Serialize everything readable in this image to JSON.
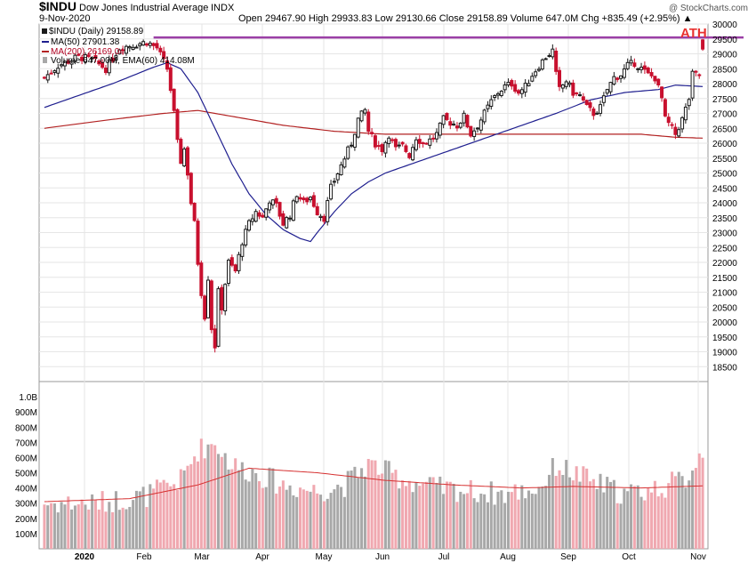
{
  "header": {
    "symbol": "$INDU",
    "name": "Dow Jones Industrial Average",
    "exchange": "INDX",
    "date": "9-Nov-2020",
    "quote": "Open 29467.90  High 29933.83  Low 29130.66  Close 29158.89  Volume 647.0M  Chg +835.49 (+2.95%) ▲",
    "brand": "@ StockCharts.com"
  },
  "legend": {
    "price": "$INDU (Daily) 29158.89",
    "ma50": "MA(50) 27901.38",
    "ma200": "MA(200) 26169.04",
    "volume": "Volume 647.00M, EMA(60) 414.08M"
  },
  "annotation": {
    "label": "ATH",
    "level": 29550
  },
  "colors": {
    "up": "#1a1a1a",
    "down": "#c8102e",
    "ma50": "#1f1f8f",
    "ma200": "#b22222",
    "vol_up": "#a8a8a8",
    "vol_down": "#f0a8b0",
    "vol_ema": "#d63030",
    "ath_line": "#9b3fa6",
    "grid": "#e6e6e6"
  },
  "chart_data": {
    "type": "candlestick",
    "title": "$INDU Dow Jones Industrial Average (Daily)",
    "y_axis": {
      "min": 18000,
      "max": 30000,
      "ticks": [
        18500,
        19000,
        19500,
        20000,
        20500,
        21000,
        21500,
        22000,
        22500,
        23000,
        23500,
        24000,
        24500,
        25000,
        25500,
        26000,
        26500,
        27000,
        27500,
        28000,
        28500,
        29000,
        29500,
        30000
      ]
    },
    "volume_axis": {
      "max_millions": 1100,
      "ticks": [
        "100M",
        "200M",
        "300M",
        "400M",
        "500M",
        "600M",
        "700M",
        "800M",
        "900M",
        "1.0B"
      ]
    },
    "x_labels": [
      "2020",
      "Feb",
      "Mar",
      "Apr",
      "May",
      "Jun",
      "Jul",
      "Aug",
      "Sep",
      "Oct",
      "Nov"
    ],
    "price_anchors": [
      [
        0,
        28200
      ],
      [
        4,
        28600
      ],
      [
        10,
        28900
      ],
      [
        14,
        28800
      ],
      [
        18,
        28500
      ],
      [
        22,
        29200
      ],
      [
        26,
        29300
      ],
      [
        30,
        29400
      ],
      [
        33,
        29200
      ],
      [
        36,
        28500
      ],
      [
        37,
        27800
      ],
      [
        38,
        27000
      ],
      [
        39,
        26000
      ],
      [
        40,
        25400
      ],
      [
        41,
        25800
      ],
      [
        42,
        25000
      ],
      [
        43,
        24000
      ],
      [
        44,
        23300
      ],
      [
        45,
        22000
      ],
      [
        46,
        21000
      ],
      [
        47,
        20200
      ],
      [
        48,
        21500
      ],
      [
        49,
        19800
      ],
      [
        50,
        19200
      ],
      [
        51,
        21000
      ],
      [
        52,
        20500
      ],
      [
        53,
        21300
      ],
      [
        54,
        22000
      ],
      [
        56,
        21700
      ],
      [
        58,
        22700
      ],
      [
        60,
        23300
      ],
      [
        62,
        23700
      ],
      [
        64,
        23500
      ],
      [
        66,
        24100
      ],
      [
        68,
        23900
      ],
      [
        70,
        23300
      ],
      [
        72,
        23600
      ],
      [
        74,
        24300
      ],
      [
        76,
        24000
      ],
      [
        78,
        24200
      ],
      [
        80,
        23700
      ],
      [
        82,
        23500
      ],
      [
        84,
        24500
      ],
      [
        86,
        25000
      ],
      [
        88,
        25500
      ],
      [
        90,
        26000
      ],
      [
        92,
        26800
      ],
      [
        94,
        27100
      ],
      [
        95,
        26400
      ],
      [
        97,
        26000
      ],
      [
        99,
        25800
      ],
      [
        101,
        26300
      ],
      [
        103,
        25800
      ],
      [
        105,
        25900
      ],
      [
        107,
        25600
      ],
      [
        109,
        26200
      ],
      [
        111,
        26000
      ],
      [
        113,
        26100
      ],
      [
        115,
        26300
      ],
      [
        117,
        26800
      ],
      [
        119,
        26700
      ],
      [
        121,
        26600
      ],
      [
        123,
        26900
      ],
      [
        125,
        26300
      ],
      [
        127,
        26600
      ],
      [
        129,
        27000
      ],
      [
        131,
        27400
      ],
      [
        133,
        27700
      ],
      [
        135,
        27900
      ],
      [
        137,
        28000
      ],
      [
        139,
        27700
      ],
      [
        141,
        27900
      ],
      [
        143,
        28300
      ],
      [
        145,
        28600
      ],
      [
        147,
        28900
      ],
      [
        149,
        29100
      ],
      [
        150,
        28300
      ],
      [
        151,
        27800
      ],
      [
        153,
        28100
      ],
      [
        155,
        27700
      ],
      [
        157,
        27600
      ],
      [
        159,
        27200
      ],
      [
        161,
        27000
      ],
      [
        163,
        27200
      ],
      [
        165,
        27800
      ],
      [
        167,
        28200
      ],
      [
        169,
        28300
      ],
      [
        171,
        28600
      ],
      [
        173,
        28700
      ],
      [
        175,
        28500
      ],
      [
        177,
        28300
      ],
      [
        179,
        28200
      ],
      [
        181,
        27500
      ],
      [
        182,
        26800
      ],
      [
        184,
        26500
      ],
      [
        185,
        26300
      ],
      [
        187,
        26800
      ],
      [
        189,
        27500
      ],
      [
        190,
        28300
      ],
      [
        192,
        28300
      ],
      [
        193,
        29159
      ]
    ],
    "ma50_anchors": [
      [
        0,
        27200
      ],
      [
        20,
        28000
      ],
      [
        32,
        28550
      ],
      [
        36,
        28700
      ],
      [
        40,
        28500
      ],
      [
        45,
        27700
      ],
      [
        50,
        26500
      ],
      [
        55,
        25300
      ],
      [
        60,
        24300
      ],
      [
        65,
        23600
      ],
      [
        70,
        23100
      ],
      [
        75,
        22800
      ],
      [
        78,
        22700
      ],
      [
        80,
        23000
      ],
      [
        85,
        23700
      ],
      [
        90,
        24300
      ],
      [
        95,
        24700
      ],
      [
        100,
        25000
      ],
      [
        110,
        25400
      ],
      [
        120,
        25800
      ],
      [
        130,
        26200
      ],
      [
        140,
        26600
      ],
      [
        150,
        27000
      ],
      [
        160,
        27450
      ],
      [
        170,
        27700
      ],
      [
        180,
        27800
      ],
      [
        185,
        27950
      ],
      [
        193,
        27901
      ]
    ],
    "ma200_anchors": [
      [
        0,
        26500
      ],
      [
        20,
        26800
      ],
      [
        35,
        27000
      ],
      [
        45,
        27100
      ],
      [
        55,
        26900
      ],
      [
        70,
        26600
      ],
      [
        85,
        26400
      ],
      [
        100,
        26300
      ],
      [
        120,
        26300
      ],
      [
        140,
        26300
      ],
      [
        160,
        26300
      ],
      [
        175,
        26300
      ],
      [
        185,
        26200
      ],
      [
        193,
        26169
      ]
    ],
    "volume_anchors": [
      [
        0,
        300
      ],
      [
        15,
        300
      ],
      [
        30,
        350
      ],
      [
        40,
        450
      ],
      [
        45,
        650
      ],
      [
        50,
        700
      ],
      [
        55,
        550
      ],
      [
        62,
        500
      ],
      [
        70,
        420
      ],
      [
        80,
        380
      ],
      [
        88,
        420
      ],
      [
        95,
        560
      ],
      [
        105,
        460
      ],
      [
        115,
        400
      ],
      [
        125,
        380
      ],
      [
        135,
        360
      ],
      [
        145,
        400
      ],
      [
        150,
        550
      ],
      [
        160,
        450
      ],
      [
        170,
        360
      ],
      [
        180,
        400
      ],
      [
        188,
        460
      ],
      [
        193,
        650
      ]
    ],
    "vol_ema_anchors": [
      [
        0,
        310
      ],
      [
        25,
        330
      ],
      [
        45,
        420
      ],
      [
        60,
        530
      ],
      [
        80,
        500
      ],
      [
        100,
        450
      ],
      [
        120,
        420
      ],
      [
        140,
        400
      ],
      [
        155,
        410
      ],
      [
        175,
        400
      ],
      [
        193,
        414
      ]
    ],
    "candle_count": 194,
    "last_close": 29158.89
  }
}
